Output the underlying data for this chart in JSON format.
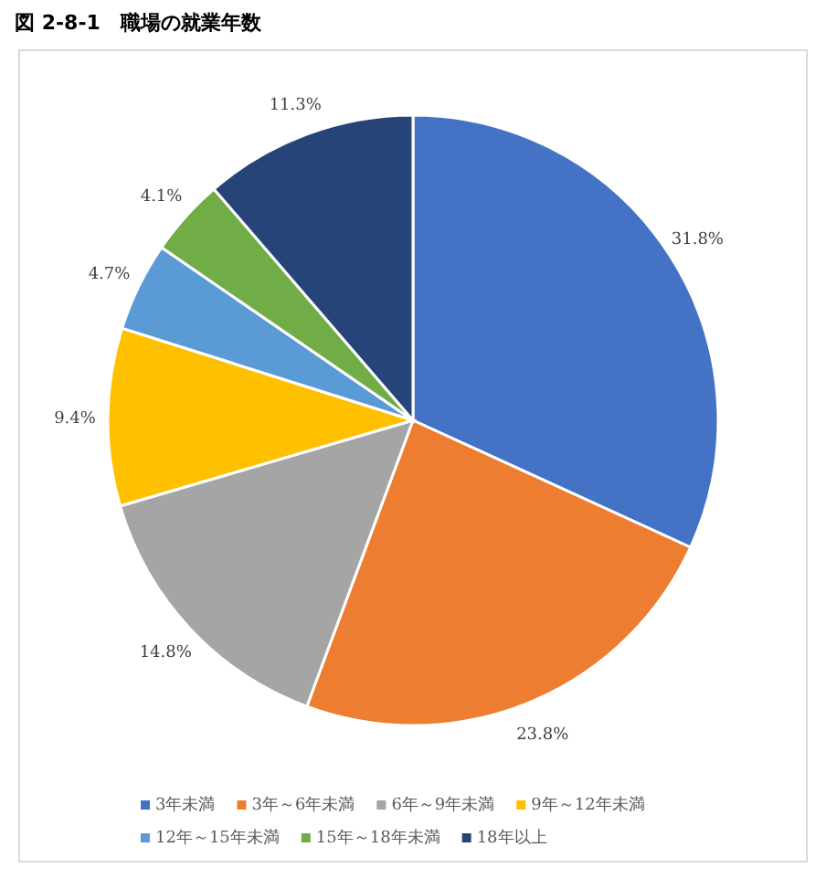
{
  "chart_data": {
    "type": "pie",
    "title": "図 2-8-1　職場の就業年数",
    "categories": [
      "3年未満",
      "3年～6年未満",
      "6年～9年未満",
      "9年～12年未満",
      "12年～15年未満",
      "15年～18年未満",
      "18年以上"
    ],
    "values": [
      31.8,
      23.8,
      14.8,
      9.4,
      4.7,
      4.1,
      11.3
    ],
    "colors": [
      "#4472c4",
      "#ed7d31",
      "#a5a5a5",
      "#ffc000",
      "#5b9bd5",
      "#70ad47",
      "#264478"
    ],
    "value_labels": [
      "31.8%",
      "23.8%",
      "14.8%",
      "9.4%",
      "4.7%",
      "4.1%",
      "11.3%"
    ],
    "legend": "bottom"
  }
}
